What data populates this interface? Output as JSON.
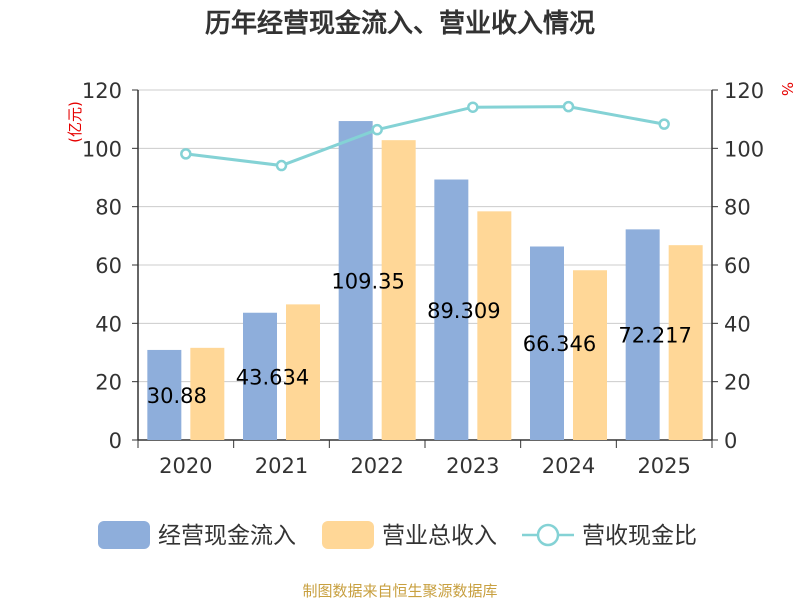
{
  "chart_data": {
    "type": "bar",
    "title": "历年经营现金流入、营业收入情况",
    "categories": [
      "2020",
      "2021",
      "2022",
      "2023",
      "2024",
      "2025"
    ],
    "series": [
      {
        "name": "经营现金流入",
        "type": "bar",
        "axis": "left",
        "color": "#8eaedb",
        "values": [
          30.88,
          43.634,
          109.35,
          89.309,
          66.346,
          72.217
        ],
        "labels": [
          "30.88",
          "43.634",
          "109.35",
          "89.309",
          "66.346",
          "72.217"
        ]
      },
      {
        "name": "营业总收入",
        "type": "bar",
        "axis": "left",
        "color": "#ffd797",
        "values": [
          31.6,
          46.5,
          102.8,
          78.4,
          58.2,
          66.8
        ]
      },
      {
        "name": "营收现金比",
        "type": "line",
        "axis": "right",
        "color": "#84d2d5",
        "values": [
          98.1,
          94.1,
          106.4,
          114.1,
          114.3,
          108.3
        ]
      }
    ],
    "y_left": {
      "label": "(亿元)",
      "min": 0,
      "max": 120,
      "ticks": [
        "0",
        "20",
        "40",
        "60",
        "80",
        "100",
        "120"
      ]
    },
    "y_right": {
      "label": "%",
      "min": 0,
      "max": 120,
      "ticks": [
        "0",
        "20",
        "40",
        "60",
        "80",
        "100",
        "120"
      ]
    },
    "grid": true,
    "legend_position": "bottom"
  },
  "source": "制图数据来自恒生聚源数据库"
}
